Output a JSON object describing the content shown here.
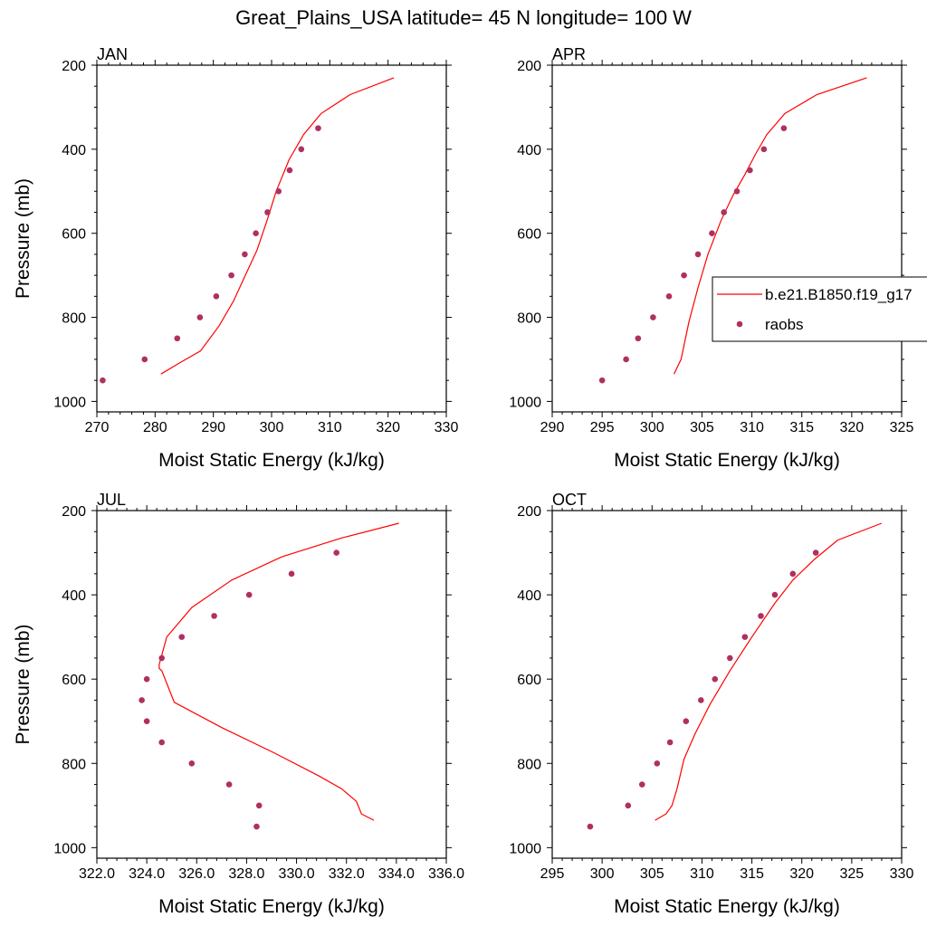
{
  "title": "Great_Plains_USA  latitude= 45 N longitude= 100 W",
  "colors": {
    "model": "#ff0000",
    "obs": "#b03060",
    "axis": "#000000"
  },
  "legend": {
    "placement": "right of APR panel",
    "entries": [
      {
        "label": "b.e21.B1850.f19_g17",
        "style": "line",
        "color": "#ff0000"
      },
      {
        "label": "raobs",
        "style": "marker",
        "color": "#b03060"
      }
    ]
  },
  "chart_data": [
    {
      "type": "line",
      "panel_label": "JAN",
      "xlabel": "Moist Static Energy (kJ/kg)",
      "ylabel": "Pressure (mb)",
      "xlim": [
        270,
        330
      ],
      "ylim": [
        1025,
        200
      ],
      "y_reversed": true,
      "xticks": [
        270,
        280,
        290,
        300,
        310,
        320,
        330
      ],
      "xticklabels": [
        "270",
        "280",
        "290",
        "300",
        "310",
        "320",
        "330"
      ],
      "yticks": [
        200,
        400,
        600,
        800,
        1000
      ],
      "yticklabels": [
        "200",
        "400",
        "600",
        "800",
        "1000"
      ],
      "series": [
        {
          "name": "b.e21.B1850.f19_g17",
          "style": "line",
          "x": [
            321.0,
            313.5,
            308.5,
            305.5,
            303.0,
            300.8,
            299.2,
            297.5,
            295.5,
            293.5,
            291.0,
            287.8,
            284.0,
            281.0
          ],
          "y": [
            230,
            270,
            315,
            365,
            425,
            500,
            570,
            640,
            700,
            760,
            820,
            880,
            910,
            935
          ]
        },
        {
          "name": "raobs",
          "style": "marker",
          "x": [
            271.0,
            278.2,
            283.8,
            287.7,
            290.5,
            293.1,
            295.4,
            297.3,
            299.3,
            301.2,
            303.1,
            305.1,
            308.0
          ],
          "y": [
            950,
            900,
            850,
            800,
            750,
            700,
            650,
            600,
            550,
            500,
            450,
            400,
            350
          ]
        }
      ]
    },
    {
      "type": "line",
      "panel_label": "APR",
      "xlabel": "Moist Static Energy (kJ/kg)",
      "ylabel": "",
      "xlim": [
        290,
        325
      ],
      "ylim": [
        1025,
        200
      ],
      "y_reversed": true,
      "xticks": [
        290,
        295,
        300,
        305,
        310,
        315,
        320,
        325
      ],
      "xticklabels": [
        "290",
        "295",
        "300",
        "305",
        "310",
        "315",
        "320",
        "325"
      ],
      "yticks": [
        200,
        400,
        600,
        800,
        1000
      ],
      "yticklabels": [
        "200",
        "400",
        "600",
        "800",
        "1000"
      ],
      "series": [
        {
          "name": "b.e21.B1850.f19_g17",
          "style": "line",
          "x": [
            321.5,
            316.5,
            313.3,
            311.5,
            310.4,
            309.3,
            308.1,
            306.9,
            305.6,
            304.6,
            303.7,
            302.9,
            302.2
          ],
          "y": [
            230,
            270,
            315,
            365,
            410,
            460,
            510,
            570,
            650,
            730,
            810,
            900,
            935
          ]
        },
        {
          "name": "raobs",
          "style": "marker",
          "x": [
            295.0,
            297.4,
            298.6,
            300.1,
            301.7,
            303.2,
            304.6,
            306.0,
            307.2,
            308.5,
            309.8,
            311.2,
            313.2
          ],
          "y": [
            950,
            900,
            850,
            800,
            750,
            700,
            650,
            600,
            550,
            500,
            450,
            400,
            350
          ]
        }
      ]
    },
    {
      "type": "line",
      "panel_label": "JUL",
      "xlabel": "Moist Static Energy (kJ/kg)",
      "ylabel": "Pressure (mb)",
      "xlim": [
        322,
        336
      ],
      "ylim": [
        1025,
        200
      ],
      "y_reversed": true,
      "xticks": [
        322,
        324,
        326,
        328,
        330,
        332,
        334,
        336
      ],
      "xticklabels": [
        "322.0",
        "324.0",
        "326.0",
        "328.0",
        "330.0",
        "332.0",
        "334.0",
        "336.0"
      ],
      "yticks": [
        200,
        400,
        600,
        800,
        1000
      ],
      "yticklabels": [
        "200",
        "400",
        "600",
        "800",
        "1000"
      ],
      "series": [
        {
          "name": "b.e21.B1850.f19_g17",
          "style": "line",
          "x": [
            334.1,
            331.8,
            329.4,
            327.4,
            325.8,
            324.8,
            324.5,
            324.5,
            324.6,
            325.1,
            327.0,
            329.1,
            330.9,
            331.8,
            332.4,
            332.6,
            333.1
          ],
          "y": [
            230,
            265,
            310,
            365,
            430,
            500,
            565,
            575,
            580,
            655,
            715,
            775,
            830,
            860,
            890,
            920,
            935
          ]
        },
        {
          "name": "raobs",
          "style": "marker",
          "x": [
            328.4,
            328.5,
            327.3,
            325.8,
            324.6,
            324.0,
            323.8,
            324.0,
            324.6,
            325.4,
            326.7,
            328.1,
            329.8,
            331.6
          ],
          "y": [
            950,
            900,
            850,
            800,
            750,
            700,
            650,
            600,
            550,
            500,
            450,
            400,
            350,
            300
          ]
        }
      ]
    },
    {
      "type": "line",
      "panel_label": "OCT",
      "xlabel": "Moist Static Energy (kJ/kg)",
      "ylabel": "",
      "xlim": [
        295,
        330
      ],
      "ylim": [
        1025,
        200
      ],
      "y_reversed": true,
      "xticks": [
        295,
        300,
        305,
        310,
        315,
        320,
        325,
        330
      ],
      "xticklabels": [
        "295",
        "300",
        "305",
        "310",
        "315",
        "320",
        "325",
        "330"
      ],
      "yticks": [
        200,
        400,
        600,
        800,
        1000
      ],
      "yticklabels": [
        "200",
        "400",
        "600",
        "800",
        "1000"
      ],
      "series": [
        {
          "name": "b.e21.B1850.f19_g17",
          "style": "line",
          "x": [
            328.0,
            323.6,
            321.3,
            319.1,
            317.3,
            315.0,
            312.8,
            310.8,
            309.3,
            308.2,
            307.5,
            307.0,
            306.4,
            305.3
          ],
          "y": [
            230,
            270,
            315,
            365,
            420,
            500,
            580,
            660,
            730,
            790,
            860,
            900,
            920,
            935
          ]
        },
        {
          "name": "raobs",
          "style": "marker",
          "x": [
            298.8,
            302.6,
            304.0,
            305.5,
            306.8,
            308.4,
            309.9,
            311.3,
            312.8,
            314.3,
            315.9,
            317.3,
            319.1,
            321.4
          ],
          "y": [
            950,
            900,
            850,
            800,
            750,
            700,
            650,
            600,
            550,
            500,
            450,
            400,
            350,
            300
          ]
        }
      ]
    }
  ]
}
